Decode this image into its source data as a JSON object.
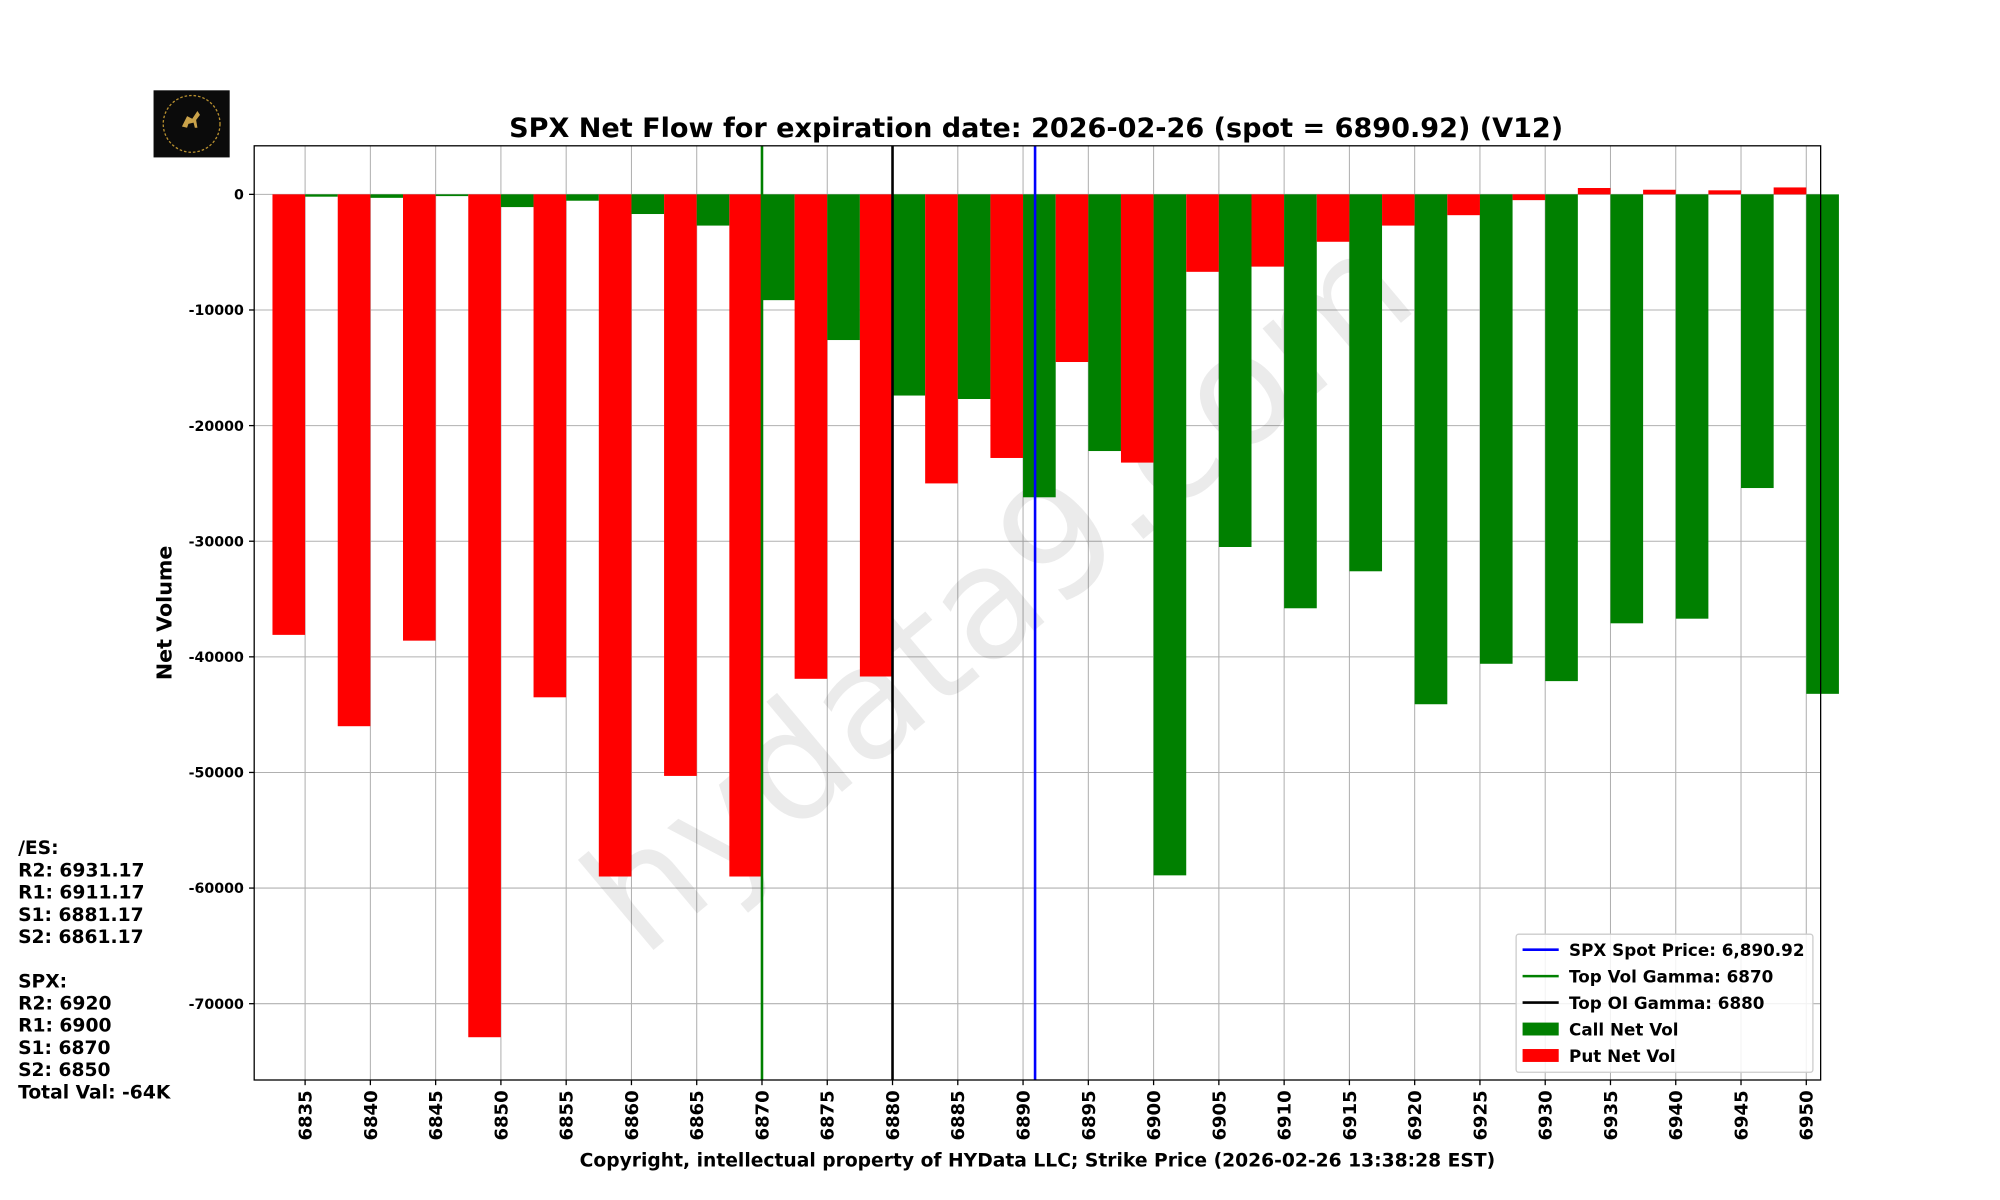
{
  "chart_data": {
    "type": "bar",
    "title": "SPX Net Flow for expiration date: 2026-02-26 (spot = 6890.92) (V12)",
    "xlabel": "Copyright, intellectual property of HYData LLC; Strike Price (2026-02-26 13:38:28 EST)",
    "ylabel": "Net Volume",
    "ylim": [
      -76600,
      4200
    ],
    "xlim": [
      6831.1,
      6951.1
    ],
    "grid": true,
    "legend_position": "bottom-right",
    "yticks": [
      0,
      -10000,
      -20000,
      -30000,
      -40000,
      -50000,
      -60000,
      -70000
    ],
    "categories": [
      6835,
      6840,
      6845,
      6850,
      6855,
      6860,
      6865,
      6870,
      6875,
      6880,
      6885,
      6890,
      6895,
      6900,
      6905,
      6910,
      6915,
      6920,
      6925,
      6930,
      6935,
      6940,
      6945,
      6950
    ],
    "series": [
      {
        "name": "Call Net Vol",
        "color": "#008000",
        "values": [
          -200,
          -300,
          -150,
          -1100,
          -550,
          -1700,
          -2700,
          -9150,
          -12600,
          -17400,
          -17700,
          -26200,
          -22200,
          -58900,
          -30500,
          -35800,
          -32600,
          -44100,
          -40600,
          -42100,
          -37100,
          -36700,
          -25400,
          -43200
        ]
      },
      {
        "name": "Put Net Vol",
        "color": "#ff0000",
        "values": [
          -38100,
          -46000,
          -38600,
          -72900,
          -43500,
          -59000,
          -50300,
          -59000,
          -41900,
          -41700,
          -25000,
          -22800,
          -14500,
          -23200,
          -6700,
          -6250,
          -4100,
          -2700,
          -1800,
          -500,
          550,
          400,
          350,
          600
        ]
      }
    ],
    "vlines": [
      {
        "name": "SPX Spot Price: 6,890.92",
        "x": 6890.92,
        "color": "#0000ff"
      },
      {
        "name": "Top Vol Gamma: 6870",
        "x": 6870,
        "color": "#008000"
      },
      {
        "name": "Top OI Gamma: 6880",
        "x": 6880,
        "color": "#000000"
      }
    ]
  },
  "watermark": "hydata9.com",
  "logo_text": "HYDATA",
  "side_panel": {
    "lines": [
      "/ES:",
      "R2: 6931.17",
      "R1: 6911.17",
      "S1: 6881.17",
      "S2: 6861.17",
      "",
      "SPX:",
      "R2: 6920",
      "R1: 6900",
      "S1: 6870",
      "S2: 6850",
      "Total Val: -64K"
    ]
  }
}
